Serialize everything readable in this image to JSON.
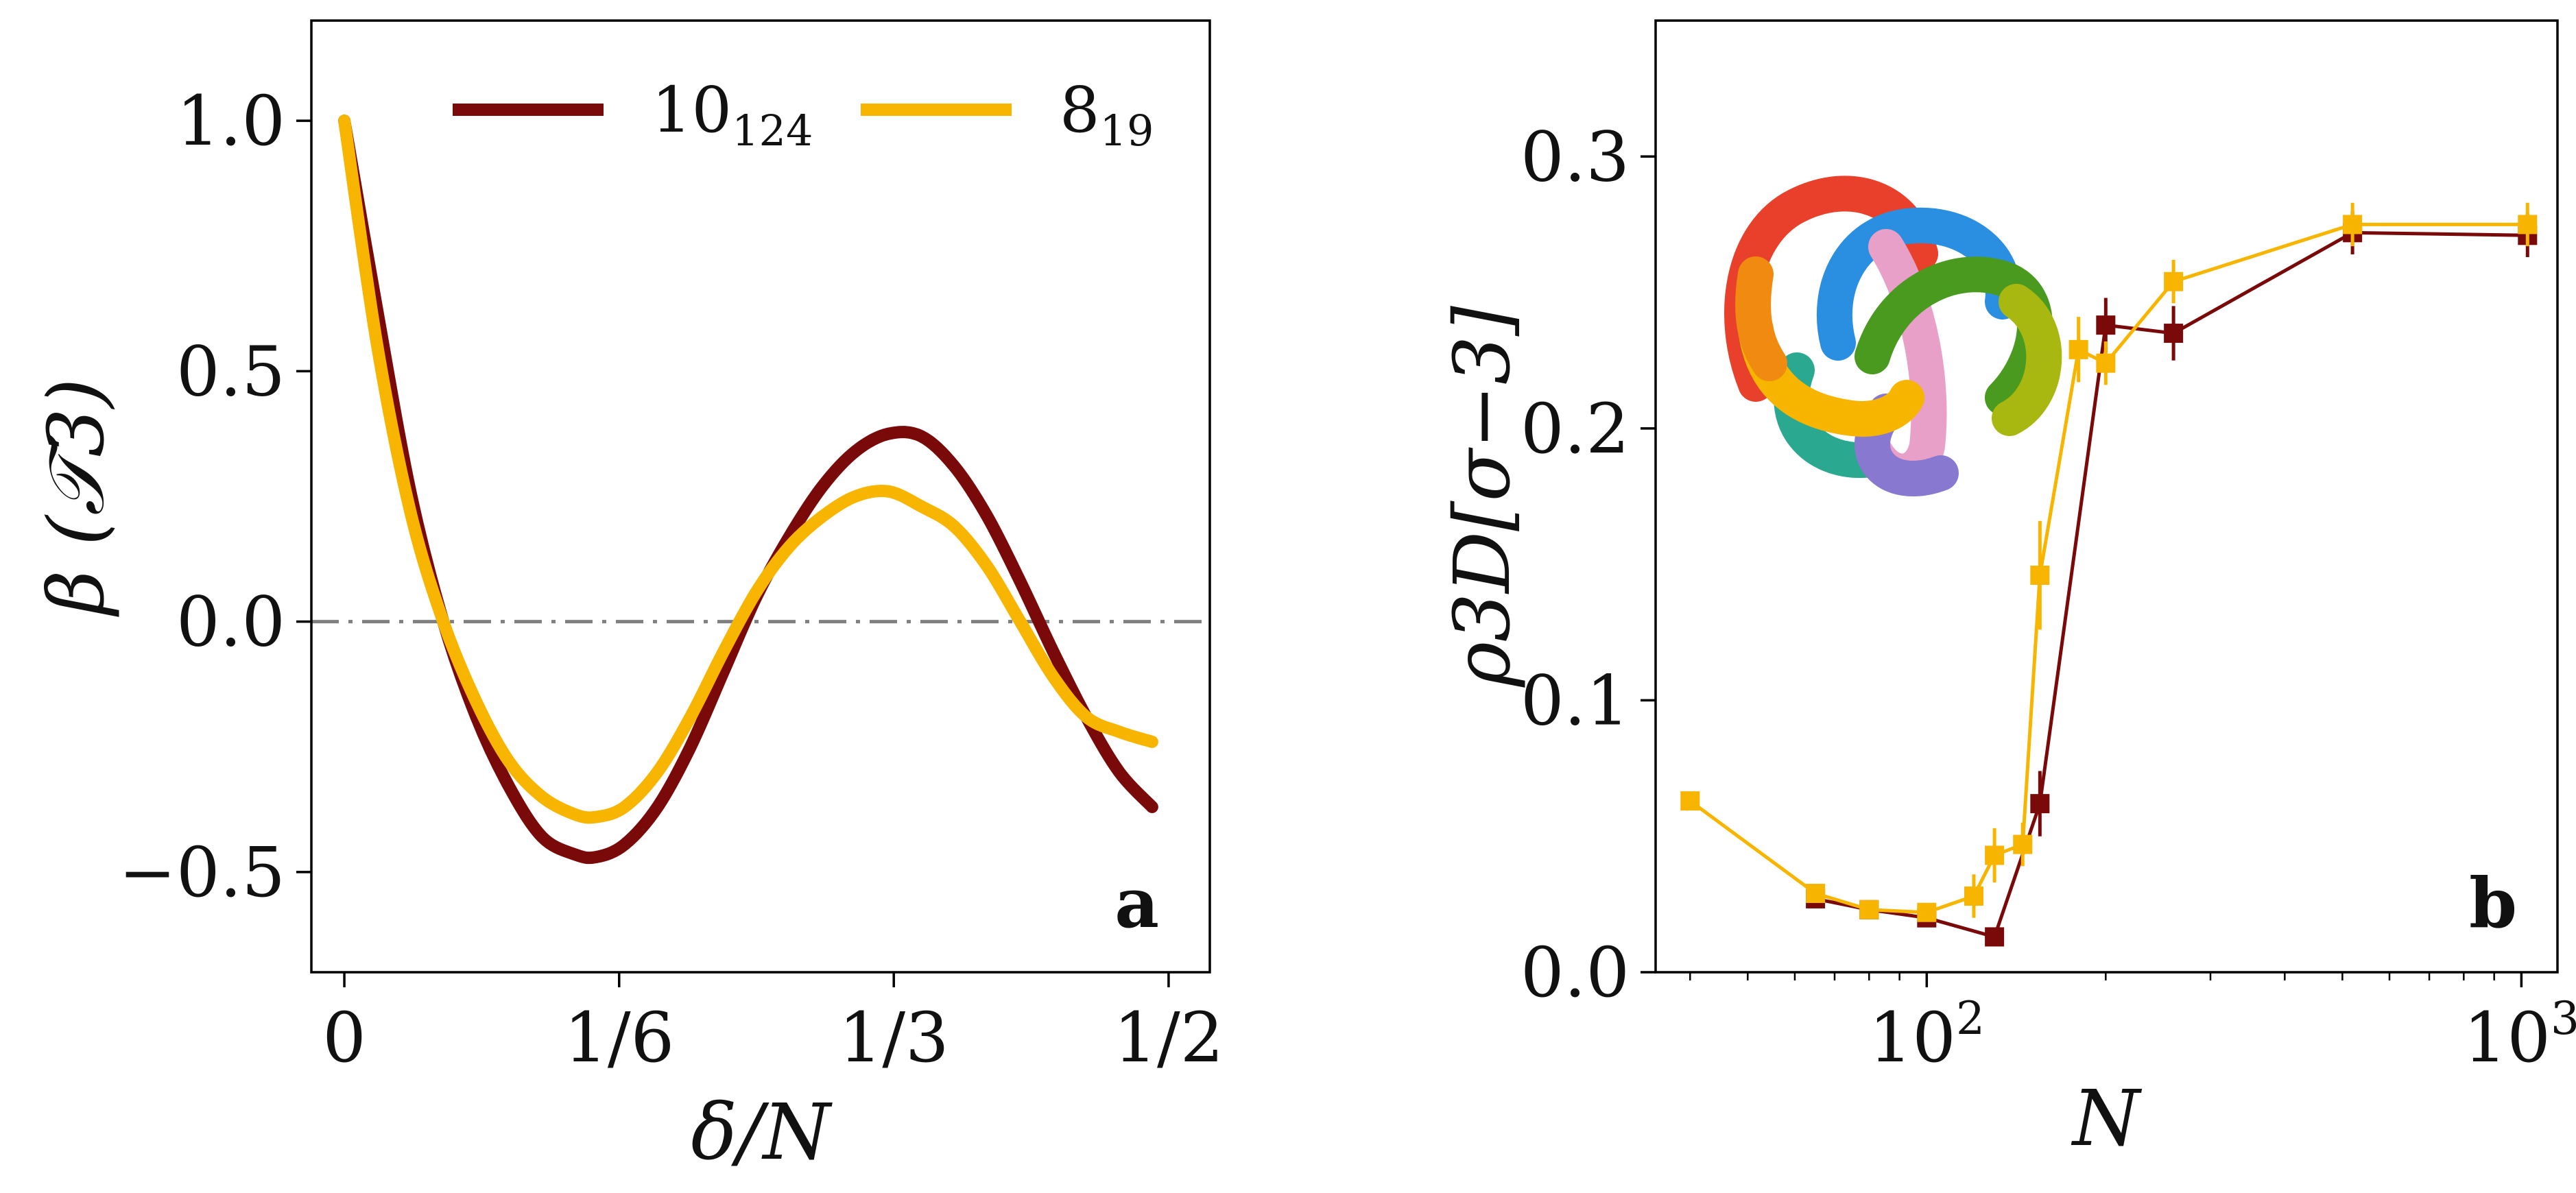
{
  "chart_data": [
    {
      "panel": "a",
      "type": "line",
      "title": "",
      "xlabel": "δ/N",
      "ylabel": "β (𝒯3)",
      "xlim": [
        -0.02,
        0.525
      ],
      "ylim": [
        -0.7,
        1.2
      ],
      "x_ticks": [
        {
          "value": 0,
          "label": "0"
        },
        {
          "value": 0.1667,
          "label": "1/6"
        },
        {
          "value": 0.3333,
          "label": "1/3"
        },
        {
          "value": 0.5,
          "label": "1/2"
        }
      ],
      "y_ticks": [
        {
          "value": 1.0,
          "label": "1.0"
        },
        {
          "value": 0.5,
          "label": "0.5"
        },
        {
          "value": 0.0,
          "label": "0.0"
        },
        {
          "value": -0.5,
          "label": "−0.5"
        }
      ],
      "reference_line": {
        "y": 0.0,
        "style": "dash-dot",
        "color": "#808080"
      },
      "legend_position": "top",
      "series": [
        {
          "name": "10",
          "subscript": "124",
          "color": "#7a0a0a",
          "x": [
            0,
            0.02,
            0.04,
            0.06,
            0.08,
            0.1,
            0.12,
            0.14,
            0.153,
            0.17,
            0.19,
            0.21,
            0.23,
            0.25,
            0.27,
            0.29,
            0.31,
            0.33,
            0.35,
            0.37,
            0.39,
            0.41,
            0.43,
            0.45,
            0.47,
            0.49
          ],
          "values": [
            1.0,
            0.62,
            0.26,
            0.0,
            -0.19,
            -0.33,
            -0.43,
            -0.465,
            -0.47,
            -0.445,
            -0.37,
            -0.25,
            -0.1,
            0.05,
            0.17,
            0.27,
            0.34,
            0.375,
            0.37,
            0.31,
            0.21,
            0.08,
            -0.06,
            -0.19,
            -0.3,
            -0.37
          ]
        },
        {
          "name": "8",
          "subscript": "19",
          "color": "#f7b500",
          "x": [
            0,
            0.02,
            0.04,
            0.06,
            0.08,
            0.1,
            0.12,
            0.14,
            0.153,
            0.17,
            0.19,
            0.21,
            0.23,
            0.25,
            0.27,
            0.29,
            0.31,
            0.33,
            0.35,
            0.37,
            0.39,
            0.41,
            0.43,
            0.45,
            0.47,
            0.49
          ],
          "values": [
            1.0,
            0.55,
            0.22,
            0.0,
            -0.16,
            -0.28,
            -0.35,
            -0.385,
            -0.39,
            -0.37,
            -0.3,
            -0.19,
            -0.06,
            0.06,
            0.15,
            0.21,
            0.25,
            0.26,
            0.23,
            0.19,
            0.11,
            0.0,
            -0.11,
            -0.19,
            -0.22,
            -0.24
          ]
        }
      ]
    },
    {
      "panel": "b",
      "type": "line",
      "title": "",
      "xlabel": "N",
      "ylabel": "ρ3D[σ−3]",
      "xscale": "log",
      "xlim": [
        35,
        1150
      ],
      "ylim": [
        0.0,
        0.35
      ],
      "x_ticks": [
        {
          "value": 100,
          "label": "10",
          "exponent": "2"
        },
        {
          "value": 1000,
          "label": "10",
          "exponent": "3"
        }
      ],
      "y_ticks": [
        {
          "value": 0.0,
          "label": "0.0"
        },
        {
          "value": 0.1,
          "label": "0.1"
        },
        {
          "value": 0.2,
          "label": "0.2"
        },
        {
          "value": 0.3,
          "label": "0.3"
        }
      ],
      "inset": "knot-rendering",
      "series": [
        {
          "name": "10_124",
          "color": "#7a0a0a",
          "x": [
            65,
            80,
            100,
            130,
            155,
            200,
            260,
            520,
            1024
          ],
          "values": [
            0.027,
            0.023,
            0.02,
            0.013,
            0.062,
            0.238,
            0.235,
            0.272,
            0.271
          ],
          "errors": [
            0.003,
            0.002,
            0.002,
            0.002,
            0.012,
            0.01,
            0.01,
            0.008,
            0.008
          ]
        },
        {
          "name": "8_19",
          "color": "#f7b500",
          "x": [
            40,
            65,
            80,
            100,
            120,
            130,
            145,
            155,
            180,
            200,
            260,
            520,
            1024
          ],
          "values": [
            0.063,
            0.029,
            0.023,
            0.022,
            0.028,
            0.043,
            0.047,
            0.146,
            0.229,
            0.224,
            0.254,
            0.275,
            0.275
          ],
          "errors": [
            0.002,
            0.002,
            0.002,
            0.002,
            0.008,
            0.01,
            0.008,
            0.02,
            0.012,
            0.008,
            0.008,
            0.008,
            0.008
          ]
        }
      ]
    }
  ]
}
